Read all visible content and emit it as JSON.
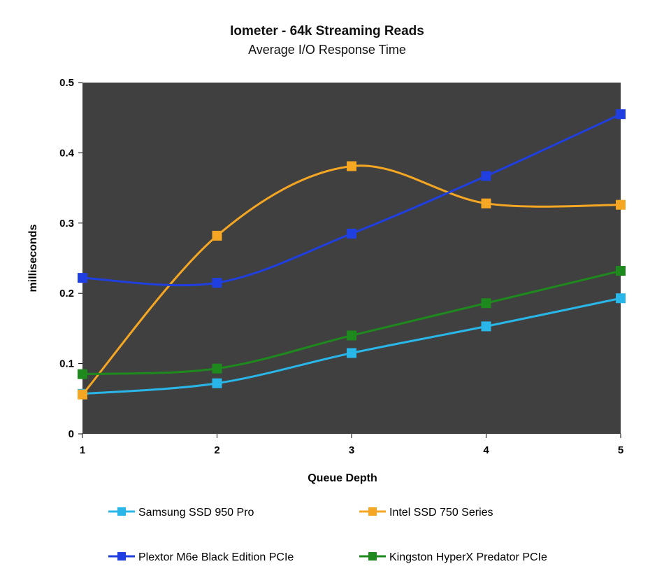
{
  "chart_data": {
    "type": "line",
    "title": "Iometer - 64k Streaming Reads",
    "subtitle": "Average I/O Response Time",
    "xlabel": "Queue Depth",
    "ylabel": "milliseconds",
    "x": [
      1,
      2,
      3,
      4,
      5
    ],
    "x_tick_labels": [
      "1",
      "2",
      "3",
      "4",
      "5"
    ],
    "y_tick_labels": [
      "0",
      "0.1",
      "0.2",
      "0.3",
      "0.4",
      "0.5"
    ],
    "ylim": [
      0,
      0.5
    ],
    "xlim": [
      1,
      5
    ],
    "grid": false,
    "plot_background": "#404040",
    "legend_position": "bottom",
    "series": [
      {
        "name": "Samsung SSD 950 Pro",
        "color": "#29b6e8",
        "values": [
          0.057,
          0.072,
          0.115,
          0.153,
          0.193
        ]
      },
      {
        "name": "Intel SSD 750 Series",
        "color": "#f5a623",
        "values": [
          0.056,
          0.282,
          0.381,
          0.328,
          0.326
        ]
      },
      {
        "name": "Plextor M6e Black Edition PCIe",
        "color": "#1f3fe0",
        "values": [
          0.222,
          0.215,
          0.285,
          0.367,
          0.455
        ]
      },
      {
        "name": "Kingston HyperX Predator PCIe",
        "color": "#1e8a1e",
        "values": [
          0.085,
          0.093,
          0.14,
          0.186,
          0.232
        ]
      }
    ]
  }
}
